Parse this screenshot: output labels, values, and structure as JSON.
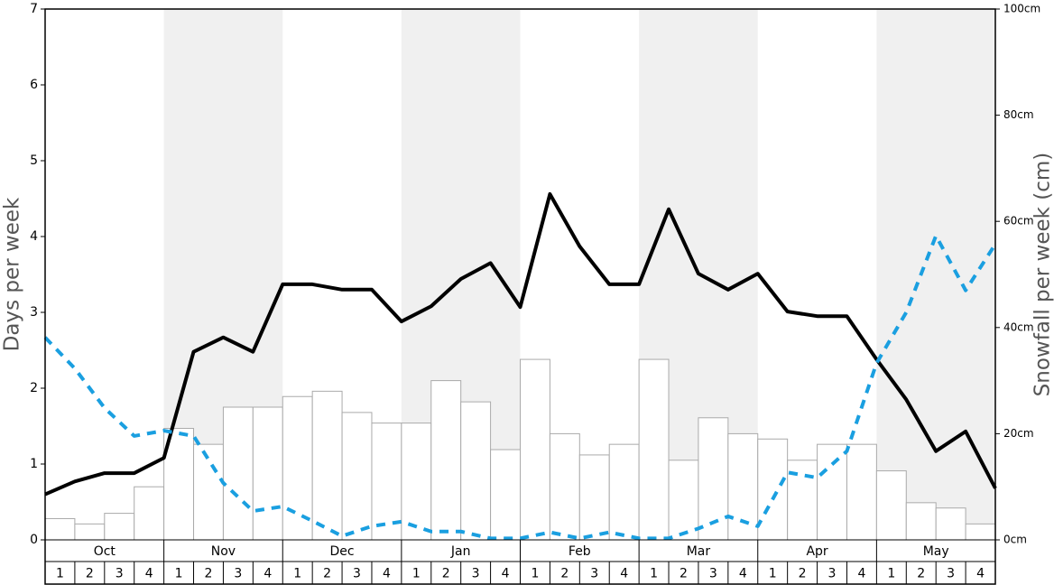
{
  "chart_data": {
    "type": "combo",
    "ylabel": "Days per week",
    "y2label": "Snowfall per week (cm)",
    "months": [
      "Oct",
      "Nov",
      "Dec",
      "Jan",
      "Feb",
      "Mar",
      "Apr",
      "May"
    ],
    "week_labels": [
      "1",
      "2",
      "3",
      "4"
    ],
    "ylim": [
      0,
      7
    ],
    "yticks": [
      0,
      1,
      2,
      3,
      4,
      5,
      6,
      7
    ],
    "y2lim": [
      0,
      100
    ],
    "y2ticks": [
      {
        "value": 0,
        "label": "0cm"
      },
      {
        "value": 20,
        "label": "20cm"
      },
      {
        "value": 40,
        "label": "40cm"
      },
      {
        "value": 60,
        "label": "60cm"
      },
      {
        "value": 80,
        "label": "80cm"
      },
      {
        "value": 100,
        "label": "100cm"
      }
    ],
    "shading": "#f0f0f0",
    "series": [
      {
        "type": "bar",
        "axis": "y2",
        "color": "#ffffff",
        "edge": "#aaaaaa",
        "values": [
          4,
          3,
          5,
          10,
          21,
          18,
          25,
          25,
          27,
          28,
          24,
          22,
          22,
          30,
          26,
          17,
          34,
          20,
          16,
          18,
          34,
          15,
          23,
          20,
          19,
          15,
          18,
          18,
          13,
          7,
          6,
          3
        ]
      },
      {
        "type": "line",
        "color": "#000000",
        "dashed": false,
        "values": [
          0.6,
          0.77,
          0.88,
          0.88,
          1.08,
          2.48,
          2.67,
          2.48,
          3.37,
          3.37,
          3.3,
          3.3,
          2.88,
          3.08,
          3.44,
          3.65,
          3.07,
          4.56,
          3.87,
          3.37,
          3.37,
          4.36,
          3.51,
          3.3,
          3.51,
          3.01,
          2.95,
          2.95,
          2.38,
          1.85,
          1.17,
          1.43,
          0.68
        ]
      },
      {
        "type": "line",
        "color": "#1a9fe0",
        "dashed": true,
        "values": [
          2.67,
          2.26,
          1.74,
          1.37,
          1.44,
          1.37,
          0.75,
          0.38,
          0.44,
          0.25,
          0.05,
          0.18,
          0.24,
          0.11,
          0.11,
          0.02,
          0.02,
          0.1,
          0.02,
          0.1,
          0.02,
          0.02,
          0.15,
          0.31,
          0.18,
          0.89,
          0.82,
          1.17,
          2.33,
          3.0,
          4.01,
          3.29,
          3.9
        ]
      }
    ]
  }
}
